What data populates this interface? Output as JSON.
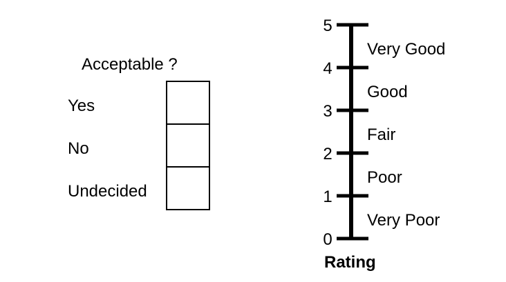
{
  "acceptability": {
    "question": "Acceptable ?",
    "options": [
      {
        "label": "Yes"
      },
      {
        "label": "No"
      },
      {
        "label": "Undecided"
      }
    ]
  },
  "rating_scale": {
    "axis_label": "Rating",
    "ticks": [
      "0",
      "1",
      "2",
      "3",
      "4",
      "5"
    ],
    "bands": [
      "Very Poor",
      "Poor",
      "Fair",
      "Good",
      "Very Good"
    ]
  }
}
